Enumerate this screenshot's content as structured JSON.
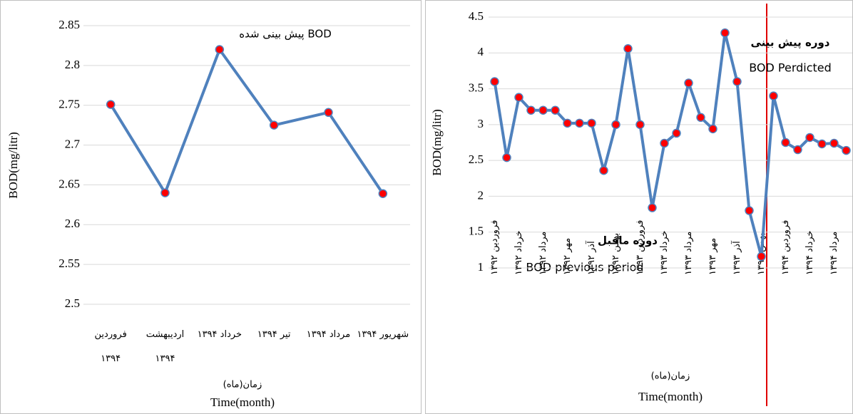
{
  "chart_data": [
    {
      "type": "line",
      "annotation": "BOD پیش بینی شده",
      "y_label": "BOD(mg/litr)",
      "x_label": "زمان(ماه)",
      "x_label_en": "Time(month)",
      "categories": [
        "فروردین ۱۳۹۴",
        "اردیبهشت ۱۳۹۴",
        "خرداد ۱۳۹۴",
        "تیر ۱۳۹۴",
        "مرداد ۱۳۹۴",
        "شهریور ۱۳۹۴"
      ],
      "values": [
        2.751,
        2.64,
        2.82,
        2.725,
        2.741,
        2.639
      ],
      "color": "#4f81bd",
      "marker_color": "#ff0000",
      "ylim": [
        2.5,
        2.85
      ],
      "yticks": [
        2.5,
        2.55,
        2.6,
        2.65,
        2.7,
        2.75,
        2.8,
        2.85
      ],
      "grid": true
    },
    {
      "type": "line",
      "annotations": [
        "دوره پیش بینی",
        "BOD Perdicted",
        "دوره ماقبل",
        "BOD previous period"
      ],
      "y_label": "BOD(mg/litr)",
      "x_label": "زمان(ماه)",
      "x_label_en": "Time(month)",
      "categories": [
        "فروردین ۱۳۹۲",
        null,
        "خرداد ۱۳۹۲",
        null,
        "مرداد ۱۳۹۲",
        null,
        "مهر ۱۳۹۲",
        null,
        "آذر ۱۳۹۲",
        null,
        "بهمن ۱۳۹۲",
        null,
        "فروردین ۱۳۹۳",
        null,
        "خرداد ۱۳۹۳",
        null,
        "مرداد ۱۳۹۳",
        null,
        "مهر ۱۳۹۳",
        null,
        "آذر ۱۳۹۳",
        null,
        "بهمن ۱۳۹۳",
        null,
        "فروردین ۱۳۹۴",
        null,
        "خرداد ۱۳۹۴",
        null,
        "مرداد ۱۳۹۴",
        null
      ],
      "values": [
        3.6,
        2.54,
        3.38,
        3.2,
        3.2,
        3.2,
        3.02,
        3.02,
        3.02,
        2.36,
        3.0,
        4.06,
        3.0,
        1.84,
        2.74,
        2.88,
        3.58,
        3.1,
        2.94,
        4.28,
        3.6,
        1.8,
        1.16,
        3.4,
        2.75,
        2.65,
        2.82,
        2.73,
        2.74,
        2.64
      ],
      "color": "#4f81bd",
      "marker_color": "#ff0000",
      "ylim": [
        1,
        4.5
      ],
      "yticks": [
        1,
        1.5,
        2,
        2.5,
        3,
        3.5,
        4,
        4.5
      ],
      "grid": true
    }
  ]
}
